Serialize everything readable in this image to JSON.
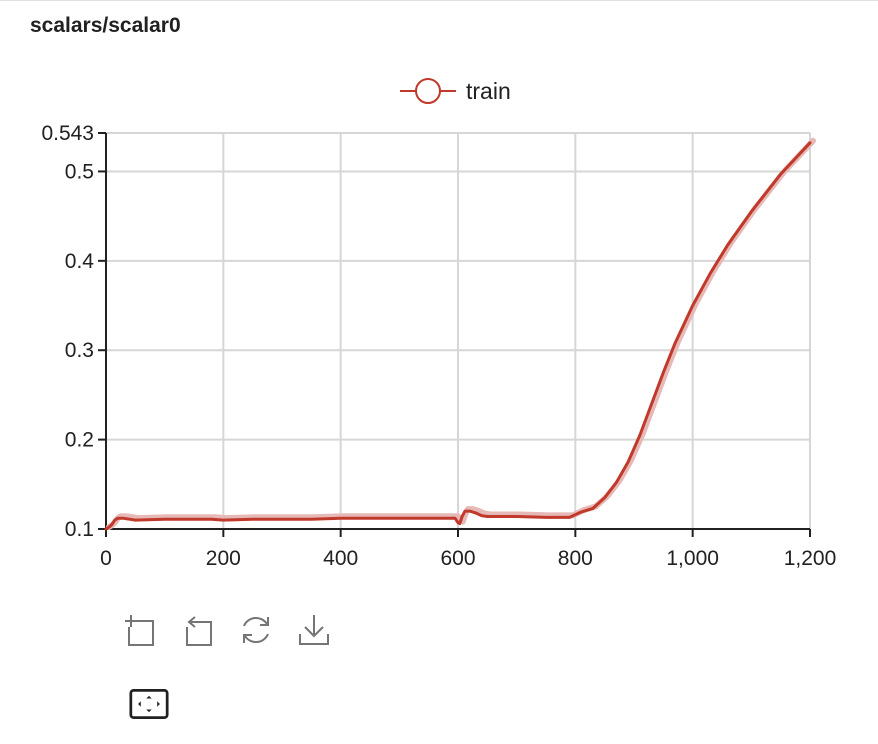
{
  "card": {
    "title": "scalars/scalar0"
  },
  "toolbar": {
    "buttons": [
      {
        "name": "zoom-in-icon"
      },
      {
        "name": "undo-zoom-icon"
      },
      {
        "name": "refresh-icon"
      },
      {
        "name": "download-icon"
      },
      {
        "name": "fit-to-screen-icon"
      }
    ]
  },
  "colors": {
    "series": "#c0392b",
    "series_raw": "#e6b8b6",
    "grid": "#d6d6d6",
    "axis": "#212121"
  },
  "chart_data": {
    "type": "line",
    "title": "",
    "xlabel": "",
    "ylabel": "",
    "xlim": [
      0,
      1200
    ],
    "ylim": [
      0.1,
      0.543
    ],
    "xticks": [
      0,
      200,
      400,
      600,
      800,
      1000,
      1200
    ],
    "xtick_labels": [
      "0",
      "200",
      "400",
      "600",
      "800",
      "1,000",
      "1,200"
    ],
    "yticks": [
      0.1,
      0.2,
      0.3,
      0.4,
      0.5,
      0.543
    ],
    "ytick_labels": [
      "0.1",
      "0.2",
      "0.3",
      "0.4",
      "0.5",
      "0.543"
    ],
    "grid": true,
    "legend": "top-center",
    "series": [
      {
        "name": "train",
        "x": [
          0,
          5,
          10,
          15,
          20,
          30,
          40,
          50,
          100,
          150,
          180,
          200,
          250,
          300,
          350,
          400,
          450,
          500,
          550,
          595,
          600,
          603,
          607,
          612,
          620,
          630,
          640,
          650,
          700,
          750,
          790,
          800,
          810,
          830,
          850,
          870,
          890,
          910,
          930,
          950,
          970,
          1000,
          1030,
          1060,
          1100,
          1150,
          1200
        ],
        "y": [
          0.1,
          0.102,
          0.105,
          0.11,
          0.112,
          0.112,
          0.111,
          0.11,
          0.111,
          0.111,
          0.111,
          0.11,
          0.111,
          0.111,
          0.111,
          0.112,
          0.112,
          0.112,
          0.112,
          0.112,
          0.107,
          0.106,
          0.114,
          0.12,
          0.12,
          0.118,
          0.115,
          0.114,
          0.114,
          0.113,
          0.113,
          0.116,
          0.119,
          0.123,
          0.135,
          0.152,
          0.175,
          0.205,
          0.24,
          0.275,
          0.308,
          0.35,
          0.386,
          0.418,
          0.455,
          0.497,
          0.532
        ]
      }
    ]
  }
}
